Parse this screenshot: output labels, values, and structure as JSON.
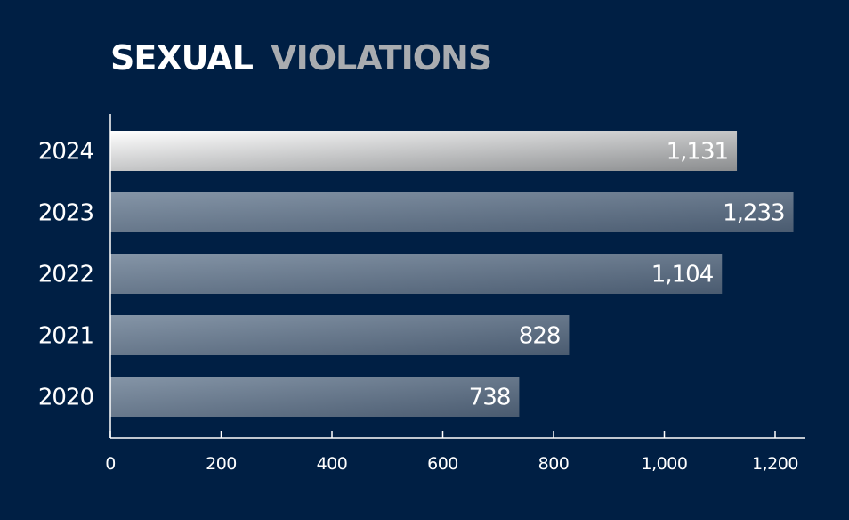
{
  "chart_data": {
    "type": "bar",
    "orientation": "horizontal",
    "title_part1": "SEXUAL",
    "title_part2": "VIOLATIONS",
    "categories": [
      "2024",
      "2023",
      "2022",
      "2021",
      "2020"
    ],
    "values": [
      1131,
      1233,
      1104,
      828,
      738
    ],
    "value_labels": [
      "1,131",
      "1,233",
      "1,104",
      "828",
      "738"
    ],
    "xlim": [
      0,
      1250
    ],
    "ticks": [
      0,
      200,
      400,
      600,
      800,
      1000,
      1200
    ],
    "tick_labels": [
      "0",
      "200",
      "400",
      "600",
      "800",
      "1,000",
      "1,200"
    ],
    "xlabel": "",
    "ylabel": "",
    "grid": false,
    "legend": "none",
    "colors": {
      "background": "#001f44",
      "highlight_start": "#ffffff",
      "highlight_end": "#8a8c8e",
      "bar_start": "#8595a7",
      "bar_end": "#4a5b70",
      "title_part1": "#ffffff",
      "title_part2": "#a9acb0",
      "axis": "#ffffff"
    }
  }
}
